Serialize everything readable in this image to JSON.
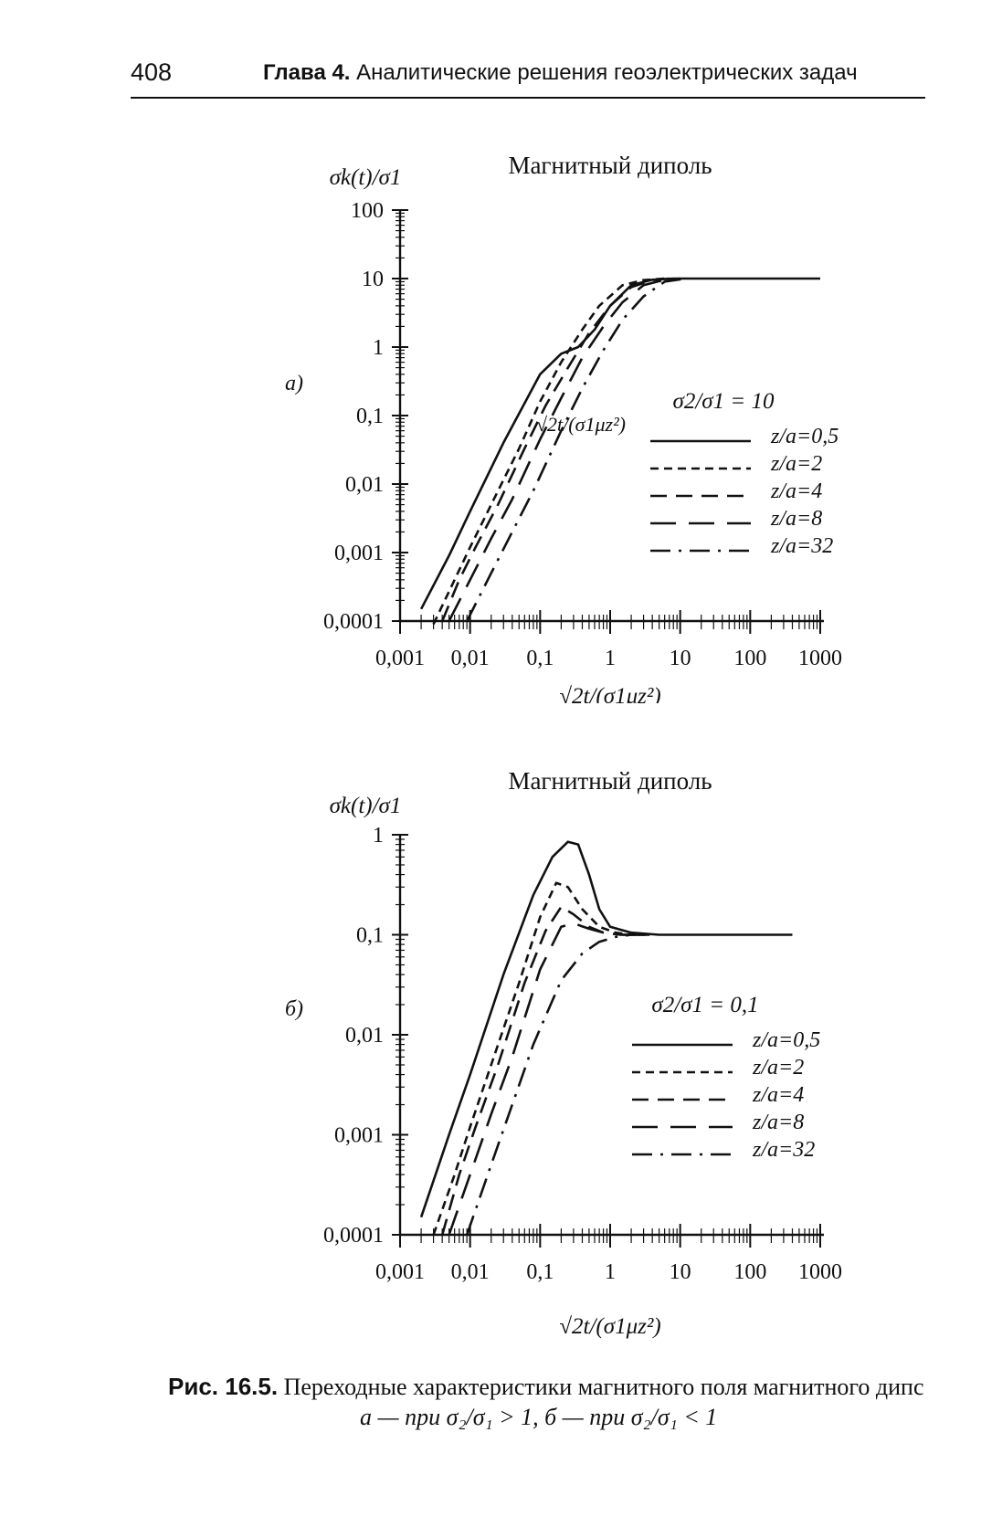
{
  "header": {
    "page_number": "408",
    "chapter_label": "Глава 4.",
    "chapter_title": "Аналитические решения геоэлектрических задач"
  },
  "caption": {
    "label": "Рис. 16.5.",
    "line1": "Переходные характеристики магнитного поля магнитного дипс",
    "line2": "a — при σ₂/σ₁ > 1, б — при σ₂/σ₁ < 1"
  },
  "chart_data": [
    {
      "type": "line",
      "panel_label": "а)",
      "title": "Магнитный диполь",
      "ylabel": "σk(t)/σ1",
      "xlabel": "√2t/(σ1μz²)",
      "xscale": "log",
      "yscale": "log",
      "xlim": [
        0.001,
        1000
      ],
      "ylim": [
        0.0001,
        100
      ],
      "x_ticks": [
        "0,001",
        "0,01",
        "0,1",
        "1",
        "10",
        "100",
        "1000"
      ],
      "y_ticks": [
        "0,0001",
        "0,001",
        "0,01",
        "0,1",
        "1",
        "10",
        "100"
      ],
      "annotation": "√2t/(σ1μz²)",
      "legend_title": "σ2/σ1 = 10",
      "legend_position": "right",
      "series": [
        {
          "name": "z/a=0,5",
          "style": "solid",
          "x": [
            0.002,
            0.005,
            0.01,
            0.03,
            0.1,
            0.2,
            0.35,
            0.6,
            1,
            2,
            4,
            8,
            20,
            100,
            1000
          ],
          "y": [
            0.00015,
            0.0009,
            0.004,
            0.04,
            0.4,
            0.8,
            1.0,
            1.8,
            4,
            8,
            9.6,
            10,
            10,
            10,
            10
          ]
        },
        {
          "name": "z/a=2",
          "style": "short-dash",
          "x": [
            0.003,
            0.006,
            0.01,
            0.02,
            0.05,
            0.1,
            0.2,
            0.4,
            0.7,
            1.5,
            3,
            6
          ],
          "y": [
            9e-05,
            0.0004,
            0.0012,
            0.005,
            0.033,
            0.16,
            0.6,
            1.8,
            4,
            8,
            9.5,
            10
          ]
        },
        {
          "name": "z/a=4",
          "style": "medium-dash",
          "x": [
            0.004,
            0.007,
            0.012,
            0.025,
            0.06,
            0.12,
            0.25,
            0.5,
            1,
            2,
            4,
            7
          ],
          "y": [
            0.0001,
            0.0004,
            0.0012,
            0.005,
            0.033,
            0.14,
            0.5,
            1.6,
            4,
            7.5,
            9.5,
            10
          ]
        },
        {
          "name": "z/a=8",
          "style": "long-dash",
          "x": [
            0.005,
            0.01,
            0.02,
            0.04,
            0.1,
            0.2,
            0.4,
            0.8,
            1.5,
            3,
            6,
            10
          ],
          "y": [
            0.0001,
            0.0004,
            0.0016,
            0.006,
            0.045,
            0.18,
            0.7,
            2,
            4.5,
            8,
            9.6,
            10
          ]
        },
        {
          "name": "z/a=32",
          "style": "dash-dot",
          "x": [
            0.009,
            0.02,
            0.04,
            0.08,
            0.2,
            0.4,
            0.8,
            1.5,
            3,
            6,
            12
          ],
          "y": [
            0.0001,
            0.0005,
            0.002,
            0.008,
            0.06,
            0.25,
            0.9,
            2.5,
            5.5,
            9,
            10
          ]
        }
      ]
    },
    {
      "type": "line",
      "panel_label": "б)",
      "title": "Магнитный диполь",
      "ylabel": "σk(t)/σ1",
      "xlabel": "√2t/(σ1μz²)",
      "xscale": "log",
      "yscale": "log",
      "xlim": [
        0.001,
        1000
      ],
      "ylim": [
        0.0001,
        1
      ],
      "x_ticks": [
        "0,001",
        "0,01",
        "0,1",
        "1",
        "10",
        "100",
        "1000"
      ],
      "y_ticks": [
        "0,0001",
        "0,001",
        "0,01",
        "0,1",
        "1"
      ],
      "legend_title": "σ2/σ1 = 0,1",
      "legend_position": "right",
      "series": [
        {
          "name": "z/a=0,5",
          "style": "solid",
          "x": [
            0.002,
            0.005,
            0.01,
            0.03,
            0.08,
            0.15,
            0.25,
            0.35,
            0.5,
            0.7,
            1,
            2,
            5,
            20,
            400
          ],
          "y": [
            0.00015,
            0.001,
            0.004,
            0.04,
            0.25,
            0.6,
            0.85,
            0.8,
            0.4,
            0.18,
            0.12,
            0.105,
            0.1,
            0.1,
            0.1
          ]
        },
        {
          "name": "z/a=2",
          "style": "short-dash",
          "x": [
            0.003,
            0.006,
            0.01,
            0.02,
            0.05,
            0.1,
            0.17,
            0.25,
            0.4,
            0.7,
            1.2,
            2,
            4
          ],
          "y": [
            0.0001,
            0.0004,
            0.0012,
            0.005,
            0.033,
            0.15,
            0.33,
            0.3,
            0.18,
            0.12,
            0.105,
            0.1,
            0.1
          ]
        },
        {
          "name": "z/a=4",
          "style": "medium-dash",
          "x": [
            0.004,
            0.007,
            0.012,
            0.025,
            0.06,
            0.12,
            0.2,
            0.3,
            0.5,
            0.8,
            1.4,
            3
          ],
          "y": [
            0.0001,
            0.0004,
            0.0012,
            0.005,
            0.033,
            0.11,
            0.19,
            0.16,
            0.12,
            0.105,
            0.1,
            0.1
          ]
        },
        {
          "name": "z/a=8",
          "style": "long-dash",
          "x": [
            0.005,
            0.01,
            0.02,
            0.04,
            0.1,
            0.2,
            0.3,
            0.5,
            0.8,
            1.5,
            3
          ],
          "y": [
            0.0001,
            0.0004,
            0.0016,
            0.006,
            0.045,
            0.12,
            0.13,
            0.115,
            0.105,
            0.1,
            0.1
          ]
        },
        {
          "name": "z/a=32",
          "style": "dash-dot",
          "x": [
            0.009,
            0.02,
            0.04,
            0.08,
            0.2,
            0.4,
            0.7,
            1.2,
            2,
            4
          ],
          "y": [
            0.0001,
            0.0005,
            0.002,
            0.008,
            0.035,
            0.065,
            0.085,
            0.095,
            0.1,
            0.1
          ]
        }
      ]
    }
  ]
}
